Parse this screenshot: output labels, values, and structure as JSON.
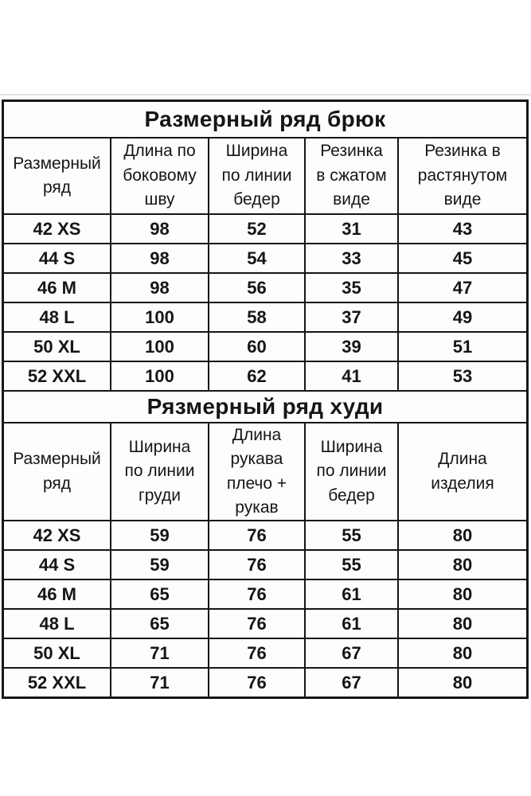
{
  "page": {
    "background": "#ffffff",
    "text_color": "#151515",
    "border_color": "#161616",
    "cell_background": "#fdfdfd"
  },
  "tables": [
    {
      "title": "Размерный ряд брюк",
      "columns": [
        "Размерный\nряд",
        "Длина по\nбоковому\nшву",
        "Ширина\nпо линии\nбедер",
        "Резинка\nв сжатом\nвиде",
        "Резинка в\nрастянутом\nвиде"
      ],
      "rows": [
        [
          "42 XS",
          "98",
          "52",
          "31",
          "43"
        ],
        [
          "44 S",
          "98",
          "54",
          "33",
          "45"
        ],
        [
          "46 M",
          "98",
          "56",
          "35",
          "47"
        ],
        [
          "48 L",
          "100",
          "58",
          "37",
          "49"
        ],
        [
          "50 XL",
          "100",
          "60",
          "39",
          "51"
        ],
        [
          "52 XXL",
          "100",
          "62",
          "41",
          "53"
        ]
      ]
    },
    {
      "title": "Рязмерный ряд худи",
      "columns": [
        "Размерный\nряд",
        "Ширина\nпо линии\nгруди",
        "Длина\nрукава\nплечо +\nрукав",
        "Ширина\nпо линии\nбедер",
        "Длина\nизделия"
      ],
      "rows": [
        [
          "42 XS",
          "59",
          "76",
          "55",
          "80"
        ],
        [
          "44 S",
          "59",
          "76",
          "55",
          "80"
        ],
        [
          "46 M",
          "65",
          "76",
          "61",
          "80"
        ],
        [
          "48 L",
          "65",
          "76",
          "61",
          "80"
        ],
        [
          "50 XL",
          "71",
          "76",
          "67",
          "80"
        ],
        [
          "52 XXL",
          "71",
          "76",
          "67",
          "80"
        ]
      ]
    }
  ]
}
